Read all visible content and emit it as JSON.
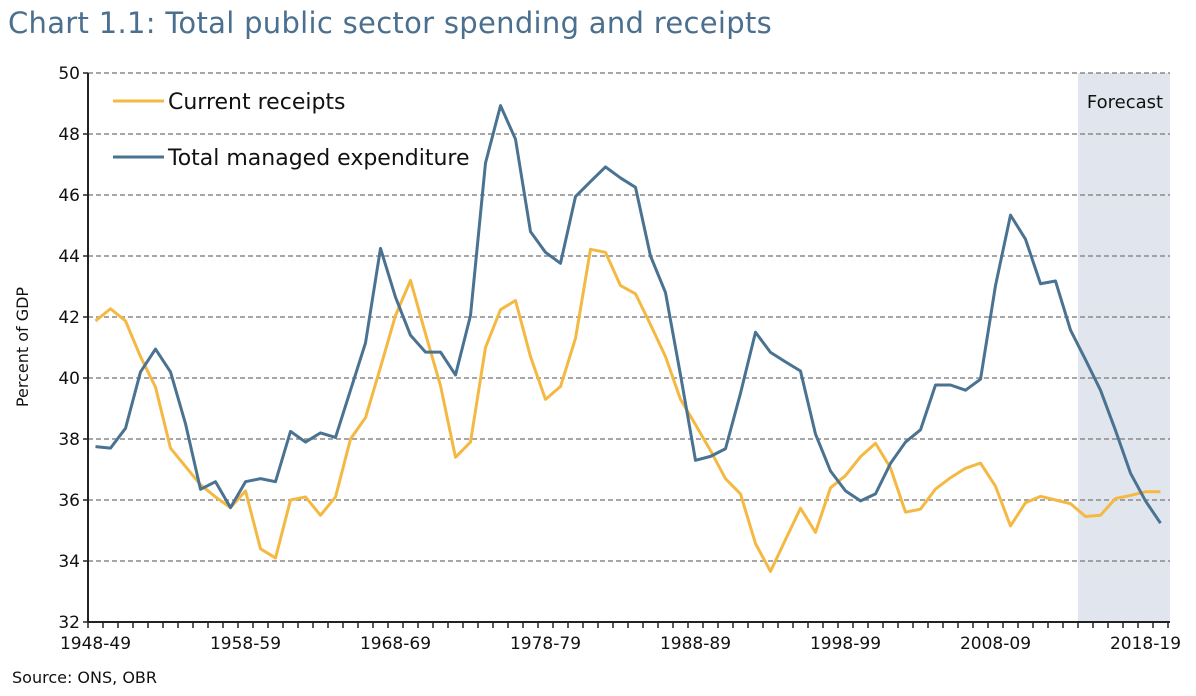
{
  "chart_data": {
    "type": "line",
    "title": "Chart 1.1:  Total public sector spending and receipts",
    "ylabel": "Percent of GDP",
    "xlabel": "",
    "ylim": [
      32,
      50
    ],
    "yticks": [
      "32",
      "34",
      "36",
      "38",
      "40",
      "42",
      "44",
      "46",
      "48",
      "50"
    ],
    "xtick_labels": [
      "1948-49",
      "1958-59",
      "1968-69",
      "1978-79",
      "1988-89",
      "1998-99",
      "2008-09",
      "2018-19"
    ],
    "x_start_year": "1948-49",
    "x_end_year": "2019-20",
    "grid": "horizontal dashed",
    "legend": "top-left",
    "forecast": {
      "label": "Forecast",
      "from": "2014-15",
      "to": "2019-20",
      "color": "#e1e6ee"
    },
    "source": "Source: ONS, OBR",
    "series": [
      {
        "name": "Current receipts",
        "color": "#f4b942",
        "values": [
          41.87,
          42.27,
          41.87,
          40.7,
          39.7,
          37.7,
          37.1,
          36.5,
          36.1,
          35.75,
          36.3,
          34.4,
          34.1,
          36.0,
          36.1,
          35.5,
          36.1,
          38.0,
          38.7,
          40.35,
          42.05,
          43.2,
          41.45,
          39.75,
          37.4,
          37.9,
          41.0,
          42.24,
          42.54,
          40.7,
          39.3,
          39.72,
          41.3,
          44.22,
          44.12,
          43.03,
          42.76,
          41.75,
          40.7,
          39.3,
          38.47,
          37.62,
          36.7,
          36.2,
          34.57,
          33.66,
          34.7,
          35.73,
          34.94,
          36.4,
          36.8,
          37.42,
          37.86,
          37.05,
          35.6,
          35.7,
          36.36,
          36.73,
          37.04,
          37.21,
          36.45,
          35.15,
          35.91,
          36.12,
          36.0,
          35.88,
          35.46,
          35.5,
          36.05,
          36.15,
          36.27,
          36.27
        ]
      },
      {
        "name": "Total managed expenditure",
        "color": "#4a7291",
        "values": [
          37.75,
          37.7,
          38.35,
          40.2,
          40.95,
          40.2,
          38.5,
          36.35,
          36.6,
          35.75,
          36.6,
          36.7,
          36.6,
          38.25,
          37.9,
          38.2,
          38.05,
          39.6,
          41.15,
          44.25,
          42.65,
          41.4,
          40.85,
          40.85,
          40.1,
          42.05,
          47.05,
          48.93,
          47.83,
          44.8,
          44.12,
          43.76,
          45.95,
          46.44,
          46.92,
          46.56,
          46.25,
          44.0,
          42.8,
          40.1,
          37.3,
          37.43,
          37.68,
          39.5,
          41.5,
          40.84,
          40.53,
          40.23,
          38.16,
          36.95,
          36.3,
          35.97,
          36.2,
          37.2,
          37.9,
          38.3,
          39.77,
          39.77,
          39.6,
          39.96,
          43.03,
          45.34,
          44.55,
          43.09,
          43.18,
          41.57,
          40.6,
          39.6,
          38.28,
          36.88,
          35.97,
          35.24
        ]
      }
    ]
  }
}
